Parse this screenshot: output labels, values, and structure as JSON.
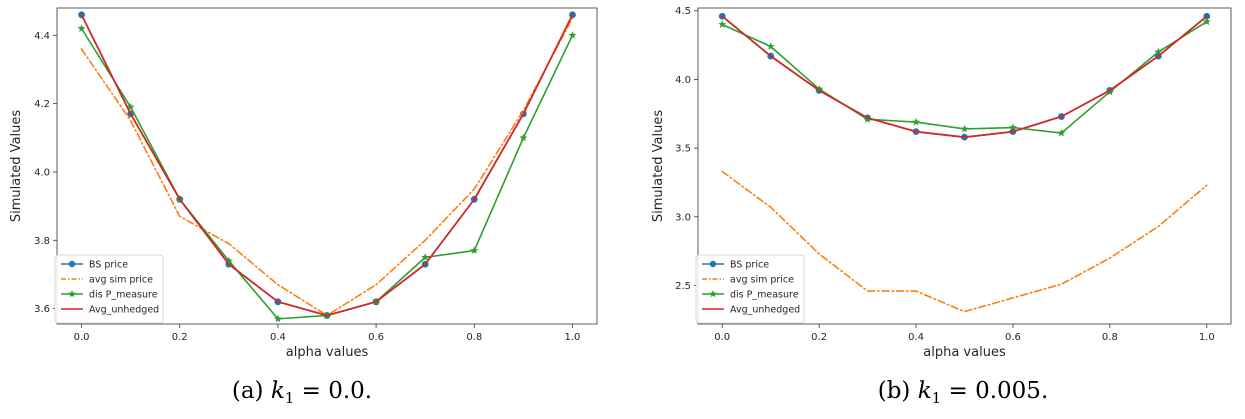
{
  "chart_data": [
    {
      "type": "line",
      "caption": {
        "prefix": "(a) ",
        "var": "k",
        "sub": "1",
        "suffix": " = 0.0."
      },
      "xlabel": "alpha values",
      "ylabel": "Simulated Values",
      "xlim": [
        -0.05,
        1.05
      ],
      "ylim": [
        3.555,
        4.48
      ],
      "xticks": [
        0.0,
        0.2,
        0.4,
        0.6,
        0.8,
        1.0
      ],
      "xtick_labels": [
        "0.0",
        "0.2",
        "0.4",
        "0.6",
        "0.8",
        "1.0"
      ],
      "yticks": [
        3.6,
        3.8,
        4.0,
        4.2,
        4.4
      ],
      "ytick_labels": [
        "3.6",
        "3.8",
        "4.0",
        "4.2",
        "4.4"
      ],
      "legend_position": "lower-left",
      "x": [
        0.0,
        0.1,
        0.2,
        0.3,
        0.4,
        0.5,
        0.6,
        0.7,
        0.8,
        0.9,
        1.0
      ],
      "series": [
        {
          "name": "BS price",
          "color": "#1f77b4",
          "style": "solid",
          "marker": "circle",
          "values": [
            4.46,
            4.17,
            3.92,
            3.73,
            3.62,
            3.58,
            3.62,
            3.73,
            3.92,
            4.17,
            4.46
          ]
        },
        {
          "name": "avg sim price",
          "color": "#ff7f0e",
          "style": "dashdot",
          "marker": "none",
          "values": [
            4.36,
            4.15,
            3.87,
            3.79,
            3.67,
            3.58,
            3.67,
            3.8,
            3.95,
            4.18,
            4.45
          ]
        },
        {
          "name": "dis P_measure",
          "color": "#2ca02c",
          "style": "solid",
          "marker": "star",
          "values": [
            4.42,
            4.19,
            3.92,
            3.74,
            3.57,
            3.58,
            3.62,
            3.75,
            3.77,
            4.1,
            4.4
          ]
        },
        {
          "name": "Avg_unhedged",
          "color": "#d62728",
          "style": "solid",
          "marker": "none",
          "values": [
            4.46,
            4.17,
            3.92,
            3.73,
            3.62,
            3.58,
            3.62,
            3.73,
            3.92,
            4.17,
            4.46
          ]
        }
      ]
    },
    {
      "type": "line",
      "caption": {
        "prefix": "(b) ",
        "var": "k",
        "sub": "1",
        "suffix": " = 0.005."
      },
      "xlabel": "alpha values",
      "ylabel": "Simulated Values",
      "xlim": [
        -0.05,
        1.05
      ],
      "ylim": [
        2.22,
        4.52
      ],
      "xticks": [
        0.0,
        0.2,
        0.4,
        0.6,
        0.8,
        1.0
      ],
      "xtick_labels": [
        "0.0",
        "0.2",
        "0.4",
        "0.6",
        "0.8",
        "1.0"
      ],
      "yticks": [
        2.5,
        3.0,
        3.5,
        4.0,
        4.5
      ],
      "ytick_labels": [
        "2.5",
        "3.0",
        "3.5",
        "4.0",
        "4.5"
      ],
      "legend_position": "lower-left",
      "x": [
        0.0,
        0.1,
        0.2,
        0.3,
        0.4,
        0.5,
        0.6,
        0.7,
        0.8,
        0.9,
        1.0
      ],
      "series": [
        {
          "name": "BS price",
          "color": "#1f77b4",
          "style": "solid",
          "marker": "circle",
          "values": [
            4.46,
            4.17,
            3.92,
            3.72,
            3.62,
            3.58,
            3.62,
            3.73,
            3.92,
            4.17,
            4.46
          ]
        },
        {
          "name": "avg sim price",
          "color": "#ff7f0e",
          "style": "dashdot",
          "marker": "none",
          "values": [
            3.33,
            3.07,
            2.73,
            2.46,
            2.46,
            2.31,
            2.41,
            2.51,
            2.7,
            2.93,
            3.23
          ]
        },
        {
          "name": "dis P_measure",
          "color": "#2ca02c",
          "style": "solid",
          "marker": "star",
          "values": [
            4.4,
            4.24,
            3.93,
            3.71,
            3.69,
            3.64,
            3.65,
            3.61,
            3.91,
            4.2,
            4.42
          ]
        },
        {
          "name": "Avg_unhedged",
          "color": "#d62728",
          "style": "solid",
          "marker": "none",
          "values": [
            4.46,
            4.17,
            3.92,
            3.72,
            3.62,
            3.58,
            3.62,
            3.73,
            3.92,
            4.17,
            4.46
          ]
        }
      ]
    }
  ]
}
